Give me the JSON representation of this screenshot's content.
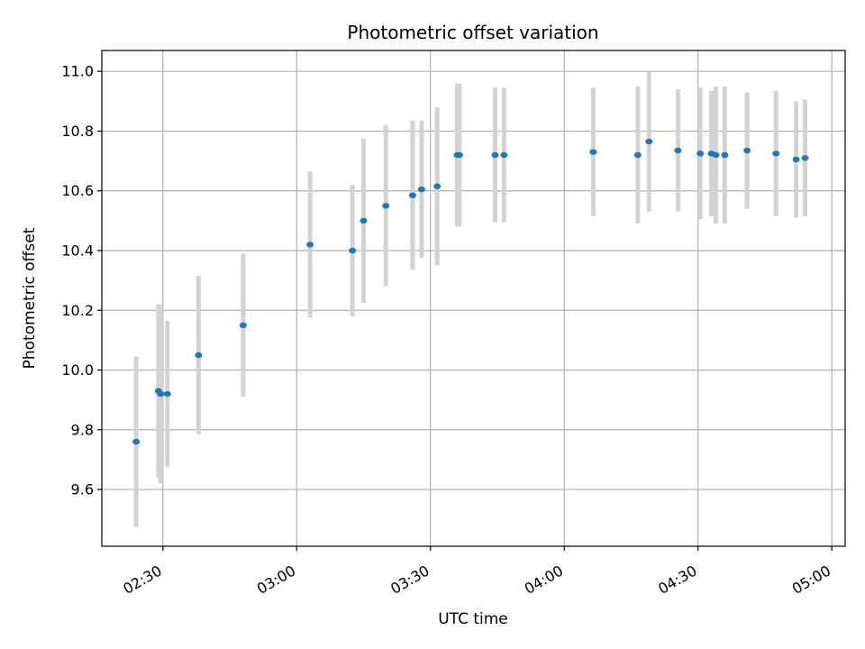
{
  "chart_data": {
    "type": "scatter",
    "title": "Photometric offset variation",
    "xlabel": "UTC time",
    "ylabel": "Photometric offset",
    "xlim_minutes": [
      136.3,
      303.0
    ],
    "ylim": [
      9.41,
      11.07
    ],
    "grid": true,
    "colors": {
      "point": "#1f77b4",
      "errorbar": "#d3d3d3",
      "grid": "#b0b0b0",
      "axes": "#000000"
    },
    "x_ticks": [
      {
        "label": "02:30",
        "minutes": 150
      },
      {
        "label": "03:00",
        "minutes": 180
      },
      {
        "label": "03:30",
        "minutes": 210
      },
      {
        "label": "04:00",
        "minutes": 240
      },
      {
        "label": "04:30",
        "minutes": 270
      },
      {
        "label": "05:00",
        "minutes": 300
      }
    ],
    "y_ticks": [
      {
        "label": "9.6",
        "value": 9.6
      },
      {
        "label": "9.8",
        "value": 9.8
      },
      {
        "label": "10.0",
        "value": 10.0
      },
      {
        "label": "10.2",
        "value": 10.2
      },
      {
        "label": "10.4",
        "value": 10.4
      },
      {
        "label": "10.6",
        "value": 10.6
      },
      {
        "label": "10.8",
        "value": 10.8
      },
      {
        "label": "11.0",
        "value": 11.0
      }
    ],
    "points": [
      {
        "t": 144.0,
        "y": 9.76,
        "err": 0.285
      },
      {
        "t": 149.0,
        "y": 9.93,
        "err": 0.29
      },
      {
        "t": 149.5,
        "y": 9.92,
        "err": 0.3
      },
      {
        "t": 151.0,
        "y": 9.92,
        "err": 0.245
      },
      {
        "t": 158.0,
        "y": 10.05,
        "err": 0.265
      },
      {
        "t": 168.0,
        "y": 10.15,
        "err": 0.24
      },
      {
        "t": 183.0,
        "y": 10.42,
        "err": 0.245
      },
      {
        "t": 192.5,
        "y": 10.4,
        "err": 0.22
      },
      {
        "t": 195.0,
        "y": 10.5,
        "err": 0.275
      },
      {
        "t": 200.0,
        "y": 10.55,
        "err": 0.27
      },
      {
        "t": 206.0,
        "y": 10.585,
        "err": 0.25
      },
      {
        "t": 208.0,
        "y": 10.605,
        "err": 0.23
      },
      {
        "t": 211.5,
        "y": 10.615,
        "err": 0.265
      },
      {
        "t": 216.0,
        "y": 10.72,
        "err": 0.24
      },
      {
        "t": 216.5,
        "y": 10.72,
        "err": 0.24
      },
      {
        "t": 224.5,
        "y": 10.72,
        "err": 0.225
      },
      {
        "t": 226.5,
        "y": 10.72,
        "err": 0.225
      },
      {
        "t": 246.5,
        "y": 10.73,
        "err": 0.215
      },
      {
        "t": 256.5,
        "y": 10.72,
        "err": 0.23
      },
      {
        "t": 259.0,
        "y": 10.765,
        "err": 0.235
      },
      {
        "t": 265.5,
        "y": 10.735,
        "err": 0.205
      },
      {
        "t": 270.5,
        "y": 10.725,
        "err": 0.22
      },
      {
        "t": 273.0,
        "y": 10.725,
        "err": 0.21
      },
      {
        "t": 274.0,
        "y": 10.72,
        "err": 0.23
      },
      {
        "t": 276.0,
        "y": 10.72,
        "err": 0.23
      },
      {
        "t": 281.0,
        "y": 10.735,
        "err": 0.195
      },
      {
        "t": 287.5,
        "y": 10.725,
        "err": 0.21
      },
      {
        "t": 292.0,
        "y": 10.705,
        "err": 0.195
      },
      {
        "t": 294.0,
        "y": 10.71,
        "err": 0.195
      }
    ]
  }
}
